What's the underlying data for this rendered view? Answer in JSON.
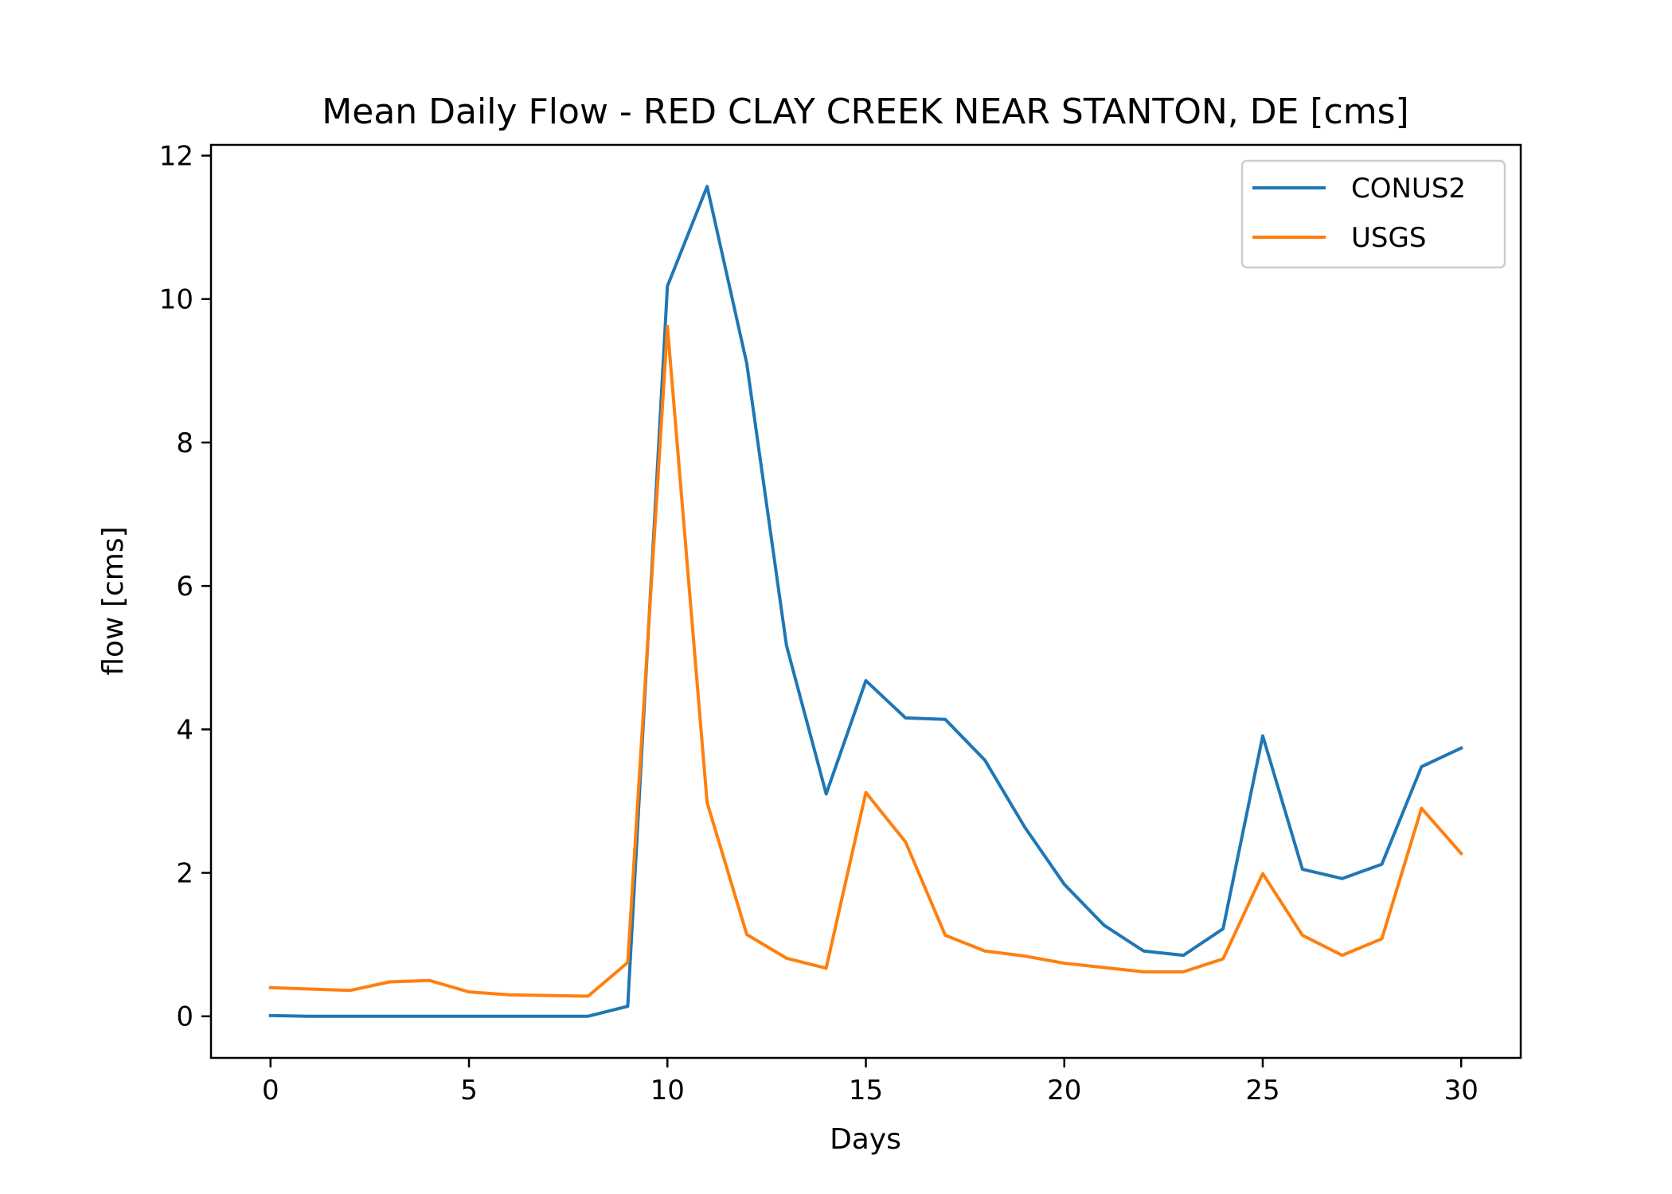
{
  "chart_data": {
    "type": "line",
    "title": "Mean Daily Flow - RED CLAY CREEK NEAR STANTON, DE [cms]",
    "xlabel": "Days",
    "ylabel": "flow [cms]",
    "xlim": [
      -1.5,
      31.5
    ],
    "ylim": [
      -0.58,
      12.15
    ],
    "xticks": [
      0,
      5,
      10,
      15,
      20,
      25,
      30
    ],
    "yticks": [
      0,
      2,
      4,
      6,
      8,
      10,
      12
    ],
    "xtick_labels": [
      "0",
      "5",
      "10",
      "15",
      "20",
      "25",
      "30"
    ],
    "ytick_labels": [
      "0",
      "2",
      "4",
      "6",
      "8",
      "10",
      "12"
    ],
    "grid": false,
    "legend_position": "top-right",
    "x": [
      0,
      1,
      2,
      3,
      4,
      5,
      6,
      7,
      8,
      9,
      10,
      11,
      12,
      13,
      14,
      15,
      16,
      17,
      18,
      19,
      20,
      21,
      22,
      23,
      24,
      25,
      26,
      27,
      28,
      29,
      30
    ],
    "series": [
      {
        "name": "CONUS2",
        "color": "#1f77b4",
        "values": [
          0.01,
          0.0,
          0.0,
          0.0,
          0.0,
          0.0,
          0.0,
          0.0,
          0.0,
          0.14,
          10.18,
          11.57,
          9.1,
          5.17,
          3.1,
          4.68,
          4.16,
          4.14,
          3.57,
          2.64,
          1.84,
          1.27,
          0.91,
          0.85,
          1.22,
          3.91,
          2.05,
          1.92,
          2.12,
          3.48,
          3.74
        ]
      },
      {
        "name": "USGS",
        "color": "#ff7f0e",
        "values": [
          0.4,
          0.38,
          0.36,
          0.48,
          0.5,
          0.34,
          0.3,
          0.29,
          0.28,
          0.75,
          9.62,
          2.98,
          1.14,
          0.81,
          0.67,
          3.12,
          2.43,
          1.13,
          0.91,
          0.84,
          0.74,
          0.68,
          0.62,
          0.62,
          0.8,
          1.99,
          1.13,
          0.85,
          1.08,
          2.9,
          2.27
        ]
      }
    ]
  }
}
